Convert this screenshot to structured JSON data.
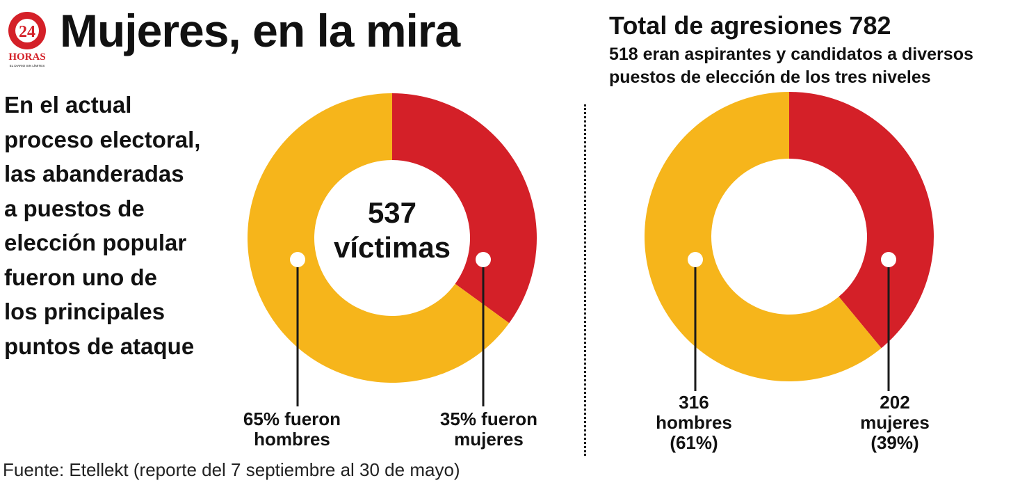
{
  "brand": {
    "logo_number": "24",
    "logo_word": "HORAS",
    "logo_tagline": "EL DIARIO SIN LÍMITES"
  },
  "title": "Mujeres, en la mira",
  "intro_lines": [
    "En el actual",
    "proceso electoral,",
    "las abanderadas",
    "a puestos de",
    "elección popular",
    "fueron uno de",
    "los principales",
    "puntos de ataque"
  ],
  "right_header": {
    "title": "Total de agresiones 782",
    "subtitle_lines": [
      "518 eran aspirantes y candidatos a diversos",
      "puestos de elección de los tres niveles"
    ]
  },
  "colors": {
    "women": "#d42028",
    "men": "#f6b51b",
    "title_red": "#d42028"
  },
  "chart_data": [
    {
      "type": "pie",
      "donut": true,
      "center_text": [
        "537",
        "víctimas"
      ],
      "series": [
        {
          "category": "mujeres",
          "value": 35,
          "color": "#d42028",
          "label_lines": [
            "35% fueron",
            "mujeres"
          ]
        },
        {
          "category": "hombres",
          "value": 65,
          "color": "#f6b51b",
          "label_lines": [
            "65% fueron",
            "hombres"
          ]
        }
      ]
    },
    {
      "type": "pie",
      "donut": true,
      "center_text": [],
      "series": [
        {
          "category": "mujeres",
          "value": 39,
          "color": "#d42028",
          "label_lines": [
            "202",
            "mujeres",
            "(39%)"
          ]
        },
        {
          "category": "hombres",
          "value": 61,
          "color": "#f6b51b",
          "label_lines": [
            "316",
            "hombres",
            "(61%)"
          ]
        }
      ]
    }
  ],
  "source": "Fuente: Etellekt (reporte del 7 septiembre al 30 de mayo)"
}
